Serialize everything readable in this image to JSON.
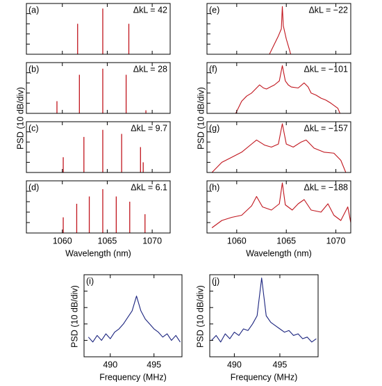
{
  "chart_data": [
    {
      "type": "stem",
      "panel_label": "(a)",
      "annotation": "ΔkL = 42",
      "color": "#c0141c",
      "x": [
        1061.7,
        1064.5,
        1067.4
      ],
      "values": [
        -20,
        -5,
        -20
      ],
      "xlim": [
        1056,
        1072
      ],
      "ylim": [
        -50,
        0
      ],
      "xticks": [
        1060,
        1065,
        1070
      ],
      "yticks": [
        -40,
        -30,
        -20,
        -10
      ]
    },
    {
      "type": "stem",
      "panel_label": "(b)",
      "annotation": "ΔkL = 28",
      "color": "#c0141c",
      "ylabel": "PSD (10 dB/div)",
      "x": [
        1059.4,
        1061.9,
        1064.5,
        1067.1,
        1069.3
      ],
      "values": [
        -38,
        -12,
        -6,
        -12,
        -47
      ],
      "xlim": [
        1056,
        1072
      ],
      "ylim": [
        -50,
        0
      ],
      "xticks": [
        1060,
        1065,
        1070
      ],
      "yticks": [
        -40,
        -30,
        -20,
        -10
      ]
    },
    {
      "type": "stem",
      "panel_label": "(c)",
      "annotation": "ΔkL = 9.7",
      "color": "#c0141c",
      "x": [
        1060.1,
        1062.4,
        1064.5,
        1066.6,
        1068.7,
        1069.0
      ],
      "values": [
        -35,
        -15,
        -8,
        -12,
        -25,
        -40
      ],
      "xlim": [
        1056,
        1072
      ],
      "ylim": [
        -50,
        0
      ],
      "xticks": [
        1060,
        1065,
        1070
      ],
      "yticks": [
        -40,
        -30,
        -20,
        -10
      ]
    },
    {
      "type": "stem",
      "panel_label": "(d)",
      "annotation": "ΔkL = 6.1",
      "color": "#c0141c",
      "xlabel": "Wavelength (nm)",
      "x": [
        1060.1,
        1061.6,
        1063.0,
        1064.5,
        1066.0,
        1067.5,
        1069.2
      ],
      "values": [
        -35,
        -22,
        -15,
        -8,
        -15,
        -20,
        -32
      ],
      "xlim": [
        1056,
        1072
      ],
      "ylim": [
        -50,
        0
      ],
      "xticks": [
        1060,
        1065,
        1070
      ],
      "yticks": [
        -40,
        -30,
        -20,
        -10
      ]
    },
    {
      "type": "line",
      "panel_label": "(e)",
      "annotation": "ΔkL = −22",
      "color": "#c0141c",
      "x": [
        1063.3,
        1063.8,
        1064.2,
        1064.5,
        1064.6,
        1064.7,
        1065.0,
        1065.3,
        1065.5
      ],
      "values": [
        -50,
        -40,
        -32,
        -25,
        -3,
        -22,
        -35,
        -45,
        -52
      ],
      "xlim": [
        1057,
        1071.5
      ],
      "ylim": [
        -50,
        0
      ],
      "xticks": [
        1060,
        1065,
        1070
      ],
      "yticks": [
        -40,
        -30,
        -20,
        -10
      ]
    },
    {
      "type": "line",
      "panel_label": "(f)",
      "annotation": "ΔkL = −101",
      "color": "#c0141c",
      "ylabel": "PSD (10 dB/div)",
      "x": [
        1059.8,
        1060.5,
        1061.0,
        1061.5,
        1062.0,
        1062.3,
        1062.7,
        1063.0,
        1063.4,
        1063.8,
        1064.3,
        1064.6,
        1064.9,
        1065.2,
        1065.5,
        1066.2,
        1066.8,
        1067.2,
        1067.5,
        1068.0,
        1068.5,
        1069.0,
        1069.5,
        1070.2,
        1070.5
      ],
      "values": [
        -52,
        -38,
        -33,
        -30,
        -25,
        -22,
        -25,
        -26,
        -24,
        -22,
        -18,
        -3,
        -18,
        -22,
        -24,
        -25,
        -20,
        -24,
        -30,
        -32,
        -35,
        -37,
        -40,
        -45,
        -52
      ],
      "xlim": [
        1057,
        1071.5
      ],
      "ylim": [
        -50,
        0
      ],
      "xticks": [
        1060,
        1065,
        1070
      ],
      "yticks": [
        -40,
        -30,
        -20,
        -10
      ]
    },
    {
      "type": "line",
      "panel_label": "(g)",
      "annotation": "ΔkL = −157",
      "color": "#c0141c",
      "x": [
        1057.5,
        1058.5,
        1059.5,
        1060.5,
        1061.5,
        1062.0,
        1062.8,
        1063.5,
        1064.2,
        1064.6,
        1065.0,
        1065.7,
        1066.5,
        1067.0,
        1067.8,
        1068.8,
        1069.8,
        1070.5,
        1071.0
      ],
      "values": [
        -50,
        -40,
        -35,
        -30,
        -22,
        -18,
        -23,
        -25,
        -22,
        -2,
        -22,
        -25,
        -20,
        -18,
        -26,
        -30,
        -31,
        -38,
        -50
      ],
      "xlim": [
        1057,
        1071.5
      ],
      "ylim": [
        -50,
        0
      ],
      "xticks": [
        1060,
        1065,
        1070
      ],
      "yticks": [
        -40,
        -30,
        -20,
        -10
      ]
    },
    {
      "type": "line",
      "panel_label": "(h)",
      "annotation": "ΔkL = −188",
      "color": "#c0141c",
      "xlabel": "Wavelength (nm)",
      "x": [
        1057.5,
        1058.5,
        1059.5,
        1060.5,
        1061.5,
        1062.0,
        1062.6,
        1063.5,
        1064.3,
        1064.6,
        1064.9,
        1065.6,
        1066.2,
        1066.8,
        1067.5,
        1068.5,
        1069.2,
        1069.8,
        1070.5,
        1071.2,
        1071.5
      ],
      "values": [
        -45,
        -38,
        -35,
        -33,
        -24,
        -15,
        -25,
        -28,
        -22,
        -2,
        -23,
        -28,
        -22,
        -18,
        -28,
        -30,
        -22,
        -33,
        -38,
        -25,
        -40
      ],
      "xlim": [
        1057,
        1071.5
      ],
      "ylim": [
        -50,
        0
      ],
      "xticks": [
        1060,
        1065,
        1070
      ],
      "yticks": [
        -40,
        -30,
        -20,
        -10
      ]
    },
    {
      "type": "line",
      "panel_label": "(i)",
      "color": "#1a237e",
      "xlabel": "Frequency (MHz)",
      "ylabel": "PSD (10 dB/div)",
      "x": [
        487.5,
        488,
        488.5,
        489,
        489.5,
        490,
        490.5,
        491,
        491.5,
        492,
        492.5,
        493,
        493.5,
        494,
        494.5,
        495,
        495.5,
        496,
        496.5,
        497,
        497.5,
        498
      ],
      "values": [
        -38,
        -41,
        -37,
        -40,
        -36,
        -39,
        -35,
        -33,
        -30,
        -26,
        -22,
        -13,
        -22,
        -27,
        -30,
        -33,
        -35,
        -38,
        -36,
        -40,
        -37,
        -41
      ],
      "xlim": [
        487,
        498.2
      ],
      "ylim": [
        -50,
        0
      ],
      "xticks": [
        490,
        495
      ],
      "yticks": [
        -40,
        -30,
        -20,
        -10
      ]
    },
    {
      "type": "line",
      "panel_label": "(j)",
      "color": "#1a237e",
      "xlabel": "Frequency (MHz)",
      "ylabel": "PSD (10 dB/div)",
      "x": [
        487.5,
        488,
        488.5,
        489,
        489.5,
        490,
        490.5,
        491,
        491.5,
        492,
        492.5,
        493,
        493.5,
        494,
        494.5,
        495,
        495.5,
        496,
        496.5,
        497,
        497.5,
        498,
        498.5,
        499
      ],
      "values": [
        -40,
        -37,
        -41,
        -36,
        -39,
        -35,
        -37,
        -33,
        -34,
        -30,
        -25,
        -2,
        -25,
        -29,
        -31,
        -33,
        -35,
        -34,
        -37,
        -36,
        -39,
        -38,
        -41,
        -39
      ],
      "xlim": [
        487.3,
        499.2
      ],
      "ylim": [
        -50,
        0
      ],
      "xticks": [
        490,
        495
      ],
      "yticks": [
        -40,
        -30,
        -20,
        -10
      ]
    }
  ]
}
